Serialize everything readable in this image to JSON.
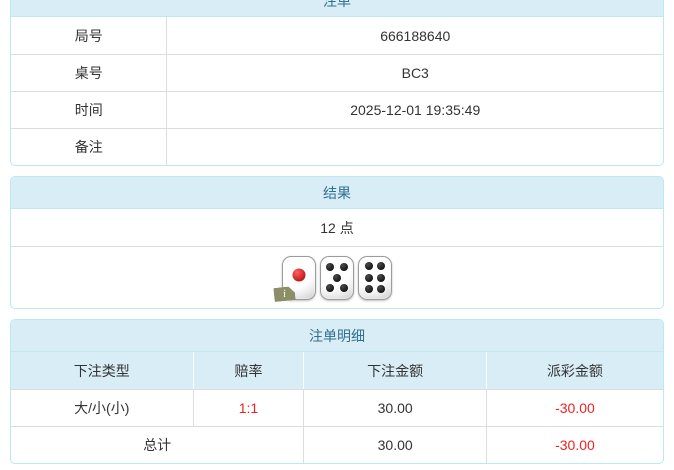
{
  "colors": {
    "accent_text": "#31708f",
    "band_bg": "#d9edf7",
    "panel_border": "#bce8f1",
    "divider": "#dddddd",
    "negative_red": "#ee2222",
    "body_text": "#333333"
  },
  "ticket": {
    "title": "注单",
    "rows": [
      {
        "label": "局号",
        "value": "666188640"
      },
      {
        "label": "桌号",
        "value": "BC3"
      },
      {
        "label": "时间",
        "value": "2025-12-01 19:35:49"
      },
      {
        "label": "备注",
        "value": ""
      }
    ]
  },
  "result": {
    "title": "结果",
    "points": "12 点",
    "dice": [
      {
        "value": 1,
        "pip_color": "red",
        "badge": "i",
        "badge_icon": "broken-image-badge"
      },
      {
        "value": 5,
        "pip_color": "black"
      },
      {
        "value": 6,
        "pip_color": "black"
      }
    ]
  },
  "details": {
    "title": "注单明细",
    "columns": [
      "下注类型",
      "赔率",
      "下注金额",
      "派彩金额"
    ],
    "rows": [
      {
        "bet_type": "大/小(小)",
        "odds": "1:1",
        "bet_amount": "30.00",
        "payout": "-30.00"
      }
    ],
    "total_label": "总计",
    "total_bet_amount": "30.00",
    "total_payout": "-30.00"
  }
}
